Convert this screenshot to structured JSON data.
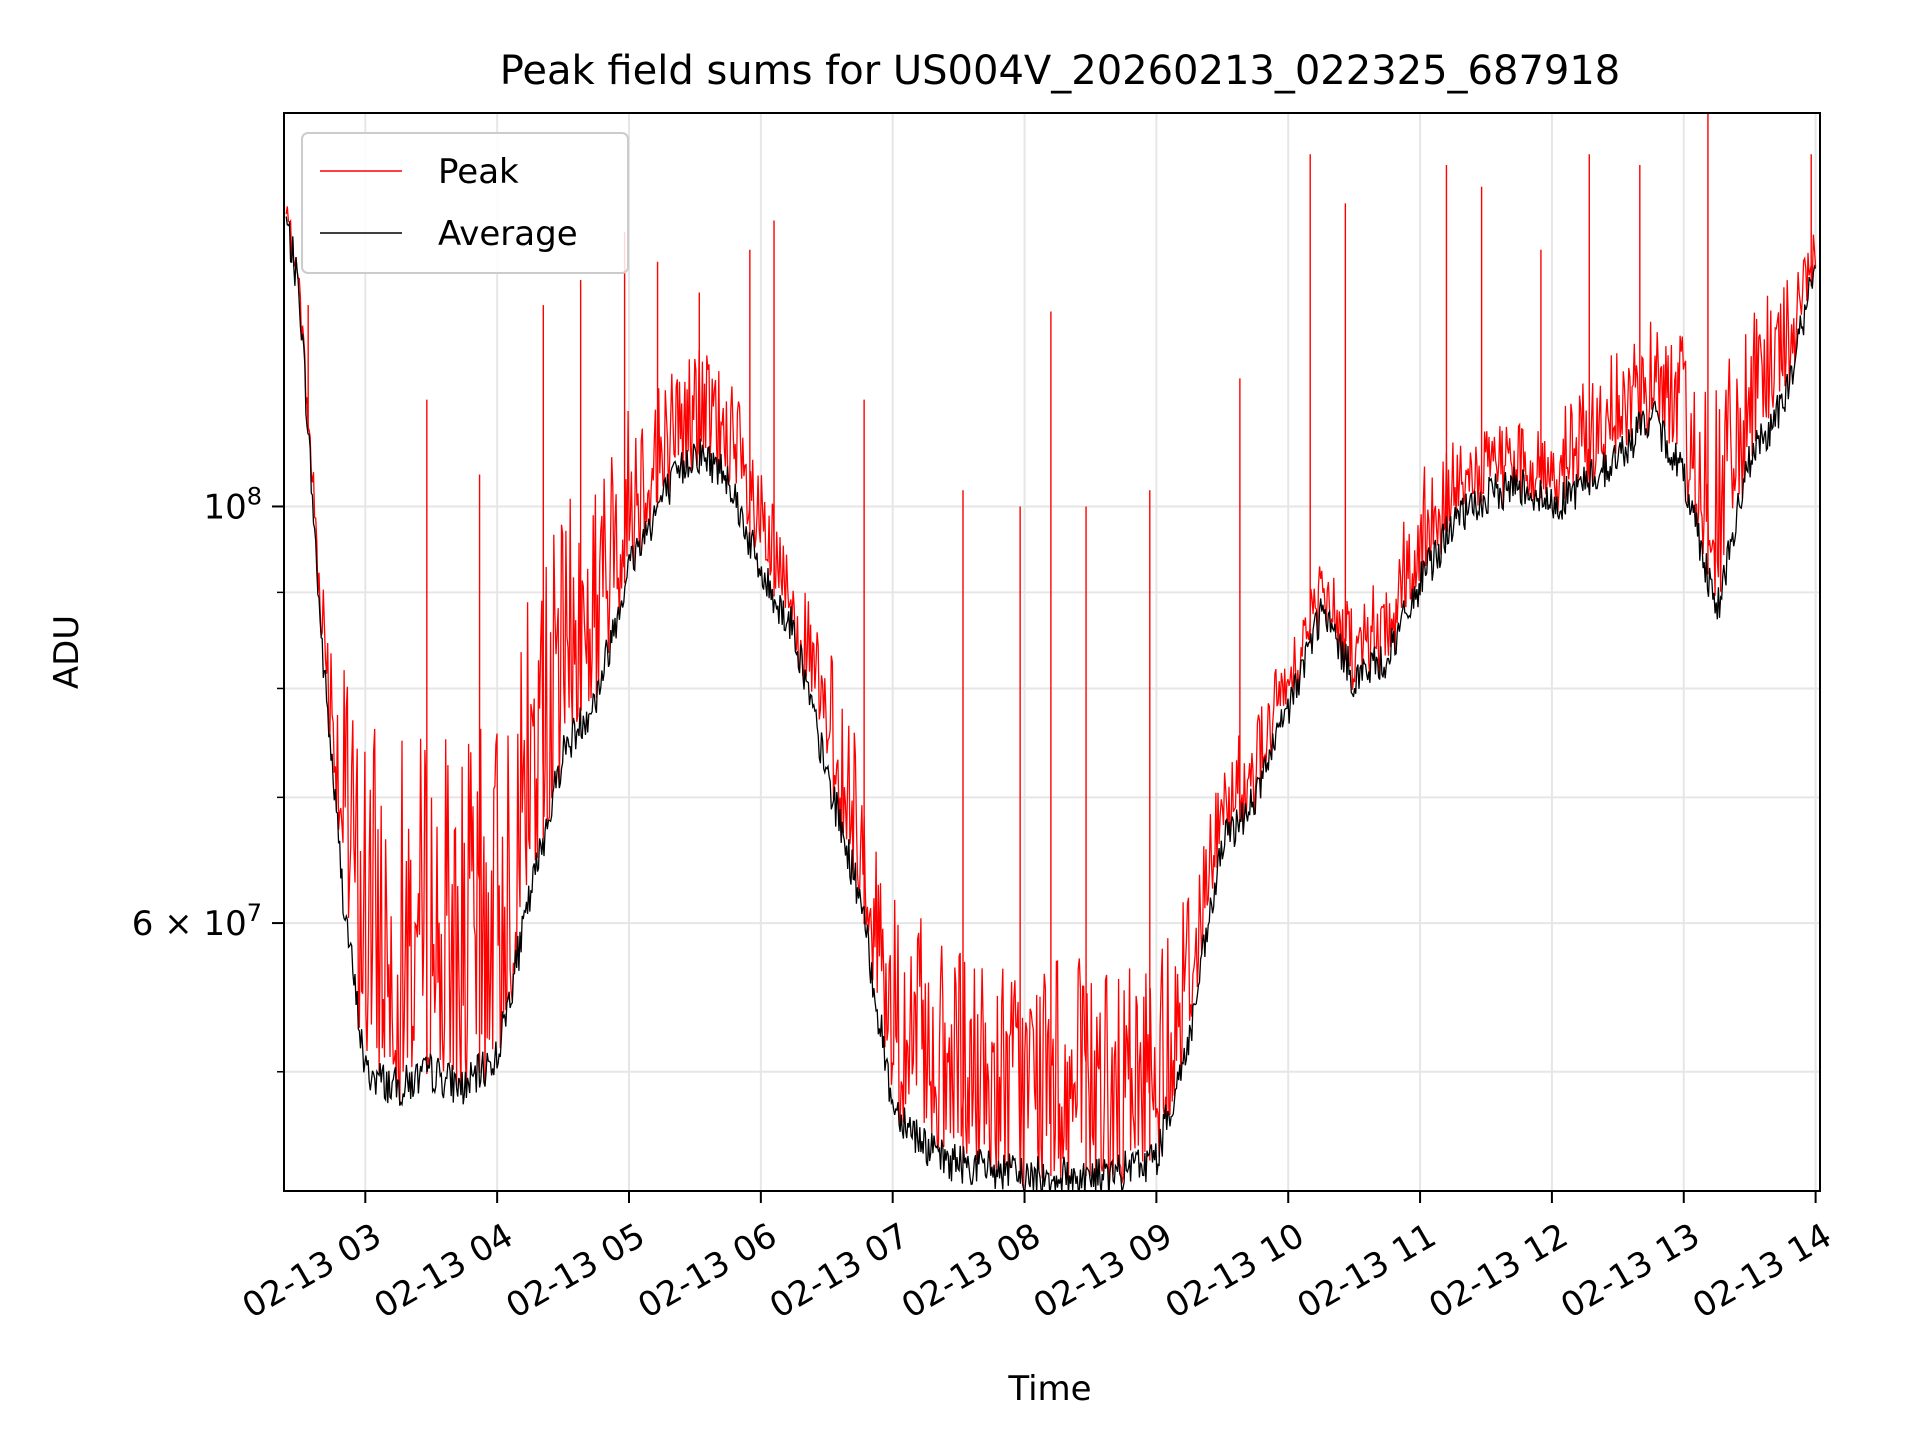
{
  "chart_data": {
    "type": "line",
    "title": "Peak field sums for US004V_20260213_022325_687918",
    "xlabel": "Time",
    "ylabel": "ADU",
    "yscale": "log",
    "ylim": [
      43200000,
      162000000
    ],
    "xlim": [
      "02-13 02:23",
      "02-13 14:02"
    ],
    "grid": true,
    "legend_position": "upper-left",
    "x_tick_labels": [
      "02-13 03",
      "02-13 04",
      "02-13 05",
      "02-13 06",
      "02-13 07",
      "02-13 08",
      "02-13 09",
      "02-13 10",
      "02-13 11",
      "02-13 12",
      "02-13 13",
      "02-13 14"
    ],
    "y_tick_labels": [
      {
        "value": 100000000,
        "base": "10",
        "exp": "8"
      },
      {
        "value": 60000000,
        "base": "6 × 10",
        "exp": "7"
      }
    ],
    "y_minor_ticks": [
      50000000,
      70000000,
      80000000,
      90000000
    ],
    "series": [
      {
        "name": "Peak",
        "color": "#ff0000",
        "x": [
          "02-13 02:24",
          "02-13 02:30",
          "02-13 02:40",
          "02-13 02:50",
          "02-13 03:00",
          "02-13 03:15",
          "02-13 03:30",
          "02-13 03:45",
          "02-13 04:00",
          "02-13 04:15",
          "02-13 04:30",
          "02-13 04:45",
          "02-13 05:00",
          "02-13 05:15",
          "02-13 05:30",
          "02-13 05:45",
          "02-13 06:00",
          "02-13 06:15",
          "02-13 06:30",
          "02-13 06:45",
          "02-13 07:00",
          "02-13 07:20",
          "02-13 07:40",
          "02-13 08:00",
          "02-13 08:20",
          "02-13 08:40",
          "02-13 09:00",
          "02-13 09:15",
          "02-13 09:30",
          "02-13 09:45",
          "02-13 10:00",
          "02-13 10:15",
          "02-13 10:30",
          "02-13 10:45",
          "02-13 11:00",
          "02-13 11:15",
          "02-13 11:30",
          "02-13 11:45",
          "02-13 12:00",
          "02-13 12:15",
          "02-13 12:30",
          "02-13 12:45",
          "02-13 13:00",
          "02-13 13:15",
          "02-13 13:30",
          "02-13 13:45",
          "02-13 14:00"
        ],
        "y": [
          145000000,
          132000000,
          92000000,
          78000000,
          72000000,
          70000000,
          71000000,
          70000000,
          72000000,
          85000000,
          95000000,
          99000000,
          110000000,
          115000000,
          120000000,
          116000000,
          102000000,
          92000000,
          82000000,
          72000000,
          60000000,
          56000000,
          55000000,
          55000000,
          55000000,
          54000000,
          56000000,
          62000000,
          72000000,
          76000000,
          84000000,
          93000000,
          88000000,
          92000000,
          103000000,
          106000000,
          108000000,
          110000000,
          108000000,
          114000000,
          118000000,
          124000000,
          120000000,
          112000000,
          122000000,
          128000000,
          140000000
        ],
        "spikes": [
          {
            "x": "02-13 02:34",
            "y": 128000000
          },
          {
            "x": "02-13 03:28",
            "y": 114000000
          },
          {
            "x": "02-13 03:52",
            "y": 104000000
          },
          {
            "x": "02-13 04:21",
            "y": 128000000
          },
          {
            "x": "02-13 04:38",
            "y": 132000000
          },
          {
            "x": "02-13 04:58",
            "y": 140000000
          },
          {
            "x": "02-13 05:13",
            "y": 135000000
          },
          {
            "x": "02-13 05:32",
            "y": 130000000
          },
          {
            "x": "02-13 05:55",
            "y": 137000000
          },
          {
            "x": "02-13 06:06",
            "y": 142000000
          },
          {
            "x": "02-13 06:47",
            "y": 114000000
          },
          {
            "x": "02-13 07:32",
            "y": 102000000
          },
          {
            "x": "02-13 07:58",
            "y": 100000000
          },
          {
            "x": "02-13 08:12",
            "y": 127000000
          },
          {
            "x": "02-13 08:28",
            "y": 100000000
          },
          {
            "x": "02-13 08:57",
            "y": 102000000
          },
          {
            "x": "02-13 09:38",
            "y": 117000000
          },
          {
            "x": "02-13 10:10",
            "y": 154000000
          },
          {
            "x": "02-13 10:26",
            "y": 145000000
          },
          {
            "x": "02-13 11:12",
            "y": 152000000
          },
          {
            "x": "02-13 11:28",
            "y": 148000000
          },
          {
            "x": "02-13 11:55",
            "y": 137000000
          },
          {
            "x": "02-13 12:17",
            "y": 154000000
          },
          {
            "x": "02-13 12:40",
            "y": 152000000
          },
          {
            "x": "02-13 13:11",
            "y": 162000000
          },
          {
            "x": "02-13 13:58",
            "y": 154000000
          }
        ]
      },
      {
        "name": "Average",
        "color": "#000000",
        "x": [
          "02-13 02:24",
          "02-13 02:30",
          "02-13 02:40",
          "02-13 02:50",
          "02-13 03:00",
          "02-13 03:15",
          "02-13 03:30",
          "02-13 03:45",
          "02-13 04:00",
          "02-13 04:15",
          "02-13 04:30",
          "02-13 04:45",
          "02-13 05:00",
          "02-13 05:15",
          "02-13 05:30",
          "02-13 05:45",
          "02-13 06:00",
          "02-13 06:15",
          "02-13 06:30",
          "02-13 06:45",
          "02-13 07:00",
          "02-13 07:20",
          "02-13 07:40",
          "02-13 08:00",
          "02-13 08:20",
          "02-13 08:40",
          "02-13 09:00",
          "02-13 09:15",
          "02-13 09:30",
          "02-13 09:45",
          "02-13 10:00",
          "02-13 10:15",
          "02-13 10:30",
          "02-13 10:45",
          "02-13 11:00",
          "02-13 11:15",
          "02-13 11:30",
          "02-13 11:45",
          "02-13 12:00",
          "02-13 12:15",
          "02-13 12:30",
          "02-13 12:45",
          "02-13 13:00",
          "02-13 13:15",
          "02-13 13:30",
          "02-13 13:45",
          "02-13 14:00"
        ],
        "y": [
          142000000,
          130000000,
          85000000,
          62000000,
          50000000,
          49000000,
          50000000,
          49000000,
          51000000,
          62000000,
          74000000,
          79000000,
          93000000,
          101000000,
          107000000,
          104000000,
          92000000,
          86000000,
          72000000,
          62000000,
          48000000,
          45000000,
          44500000,
          44000000,
          44000000,
          44000000,
          45000000,
          52000000,
          66000000,
          70000000,
          78000000,
          88000000,
          81000000,
          83000000,
          91000000,
          98000000,
          101000000,
          103000000,
          100000000,
          103000000,
          106000000,
          112000000,
          104000000,
          88000000,
          106000000,
          113000000,
          134000000
        ]
      }
    ]
  }
}
